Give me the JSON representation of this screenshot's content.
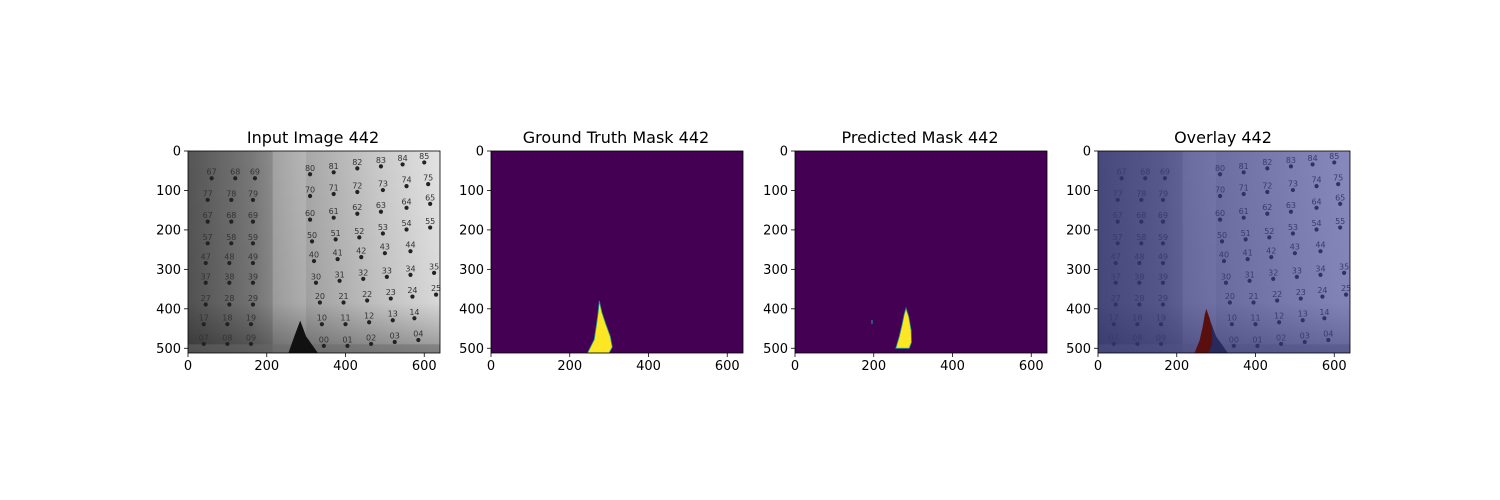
{
  "chart_data": [
    {
      "type": "heatmap",
      "title": "Input Image 442",
      "image_kind": "grayscale-photo",
      "colormap": "gray",
      "xlim": [
        0,
        640
      ],
      "ylim": [
        512,
        0
      ],
      "xticks": [
        0,
        200,
        400,
        600
      ],
      "yticks": [
        0,
        100,
        200,
        300,
        400,
        500
      ],
      "visible_numbers": [
        {
          "row": 0,
          "items": [
            [
              "67",
              60,
              55
            ],
            [
              "68",
              120,
              55
            ],
            [
              "69",
              170,
              55
            ],
            [
              "80",
              310,
              45
            ],
            [
              "81",
              370,
              40
            ],
            [
              "82",
              430,
              30
            ],
            [
              "83",
              490,
              25
            ],
            [
              "84",
              545,
              20
            ],
            [
              "85",
              600,
              15
            ]
          ]
        },
        {
          "row": 1,
          "items": [
            [
              "77",
              50,
              110
            ],
            [
              "78",
              110,
              110
            ],
            [
              "79",
              165,
              110
            ],
            [
              "70",
              310,
              100
            ],
            [
              "71",
              370,
              95
            ],
            [
              "72",
              430,
              90
            ],
            [
              "73",
              495,
              85
            ],
            [
              "74",
              555,
              75
            ],
            [
              "75",
              610,
              70
            ]
          ]
        },
        {
          "row": 2,
          "items": [
            [
              "67",
              50,
              165
            ],
            [
              "68",
              110,
              165
            ],
            [
              "69",
              165,
              165
            ],
            [
              "60",
              310,
              160
            ],
            [
              "61",
              370,
              155
            ],
            [
              "62",
              430,
              145
            ],
            [
              "63",
              490,
              140
            ],
            [
              "64",
              555,
              130
            ],
            [
              "65",
              615,
              120
            ]
          ]
        },
        {
          "row": 3,
          "items": [
            [
              "57",
              50,
              220
            ],
            [
              "58",
              110,
              220
            ],
            [
              "59",
              165,
              220
            ],
            [
              "50",
              315,
              215
            ],
            [
              "51",
              375,
              210
            ],
            [
              "52",
              435,
              205
            ],
            [
              "53",
              495,
              195
            ],
            [
              "54",
              555,
              185
            ],
            [
              "55",
              615,
              180
            ]
          ]
        },
        {
          "row": 4,
          "items": [
            [
              "47",
              45,
              270
            ],
            [
              "48",
              105,
              270
            ],
            [
              "49",
              165,
              270
            ],
            [
              "40",
              320,
              265
            ],
            [
              "41",
              380,
              260
            ],
            [
              "42",
              440,
              255
            ],
            [
              "43",
              500,
              245
            ],
            [
              "44",
              565,
              240
            ]
          ]
        },
        {
          "row": 5,
          "items": [
            [
              "37",
              45,
              320
            ],
            [
              "38",
              105,
              320
            ],
            [
              "39",
              165,
              320
            ],
            [
              "30",
              325,
              320
            ],
            [
              "31",
              385,
              315
            ],
            [
              "32",
              445,
              310
            ],
            [
              "33",
              505,
              305
            ],
            [
              "34",
              565,
              300
            ],
            [
              "35",
              625,
              295
            ]
          ]
        },
        {
          "row": 6,
          "items": [
            [
              "27",
              45,
              375
            ],
            [
              "28",
              105,
              375
            ],
            [
              "29",
              165,
              375
            ],
            [
              "20",
              335,
              370
            ],
            [
              "21",
              395,
              370
            ],
            [
              "22",
              455,
              365
            ],
            [
              "23",
              515,
              360
            ],
            [
              "24",
              570,
              355
            ],
            [
              "25",
              630,
              350
            ]
          ]
        },
        {
          "row": 7,
          "items": [
            [
              "17",
              40,
              425
            ],
            [
              "18",
              100,
              425
            ],
            [
              "19",
              160,
              425
            ],
            [
              "10",
              340,
              425
            ],
            [
              "11",
              400,
              425
            ],
            [
              "12",
              460,
              420
            ],
            [
              "13",
              520,
              415
            ],
            [
              "14",
              575,
              410
            ]
          ]
        },
        {
          "row": 8,
          "items": [
            [
              "07",
              40,
              475
            ],
            [
              "08",
              100,
              475
            ],
            [
              "09",
              160,
              475
            ],
            [
              "00",
              345,
              480
            ],
            [
              "01",
              405,
              480
            ],
            [
              "02",
              465,
              475
            ],
            [
              "03",
              525,
              470
            ],
            [
              "04",
              585,
              465
            ]
          ]
        }
      ]
    },
    {
      "type": "heatmap",
      "title": "Ground Truth Mask 442",
      "colormap": "viridis",
      "background_color": "#440154",
      "foreground_color": "#fde725",
      "edge_color": "#21918c",
      "xlim": [
        0,
        640
      ],
      "ylim": [
        512,
        0
      ],
      "xticks": [
        0,
        200,
        400,
        600
      ],
      "yticks": [
        0,
        100,
        200,
        300,
        400,
        500
      ],
      "mask_region": [
        [
          275,
          380
        ],
        [
          282,
          410
        ],
        [
          292,
          440
        ],
        [
          303,
          470
        ],
        [
          308,
          497
        ],
        [
          300,
          512
        ],
        [
          245,
          512
        ],
        [
          262,
          478
        ],
        [
          268,
          440
        ],
        [
          272,
          410
        ]
      ]
    },
    {
      "type": "heatmap",
      "title": "Predicted Mask 442",
      "colormap": "viridis",
      "background_color": "#440154",
      "foreground_color": "#fde725",
      "edge_color": "#21918c",
      "xlim": [
        0,
        640
      ],
      "ylim": [
        512,
        0
      ],
      "xticks": [
        0,
        200,
        400,
        600
      ],
      "yticks": [
        0,
        100,
        200,
        300,
        400,
        500
      ],
      "mask_region": [
        [
          282,
          398
        ],
        [
          289,
          420
        ],
        [
          295,
          455
        ],
        [
          296,
          485
        ],
        [
          290,
          500
        ],
        [
          256,
          500
        ],
        [
          265,
          470
        ],
        [
          272,
          440
        ],
        [
          277,
          415
        ]
      ],
      "speck": [
        194,
        428
      ]
    },
    {
      "type": "heatmap",
      "title": "Overlay 442",
      "colormap": "overlay",
      "overlay_tint": "#3c3f9e",
      "mask_color": "#5a0f0f",
      "xlim": [
        0,
        640
      ],
      "ylim": [
        512,
        0
      ],
      "xticks": [
        0,
        200,
        400,
        600
      ],
      "yticks": [
        0,
        100,
        200,
        300,
        400,
        500
      ],
      "mask_region": [
        [
          275,
          400
        ],
        [
          284,
          425
        ],
        [
          290,
          455
        ],
        [
          290,
          490
        ],
        [
          280,
          512
        ],
        [
          245,
          512
        ],
        [
          258,
          480
        ],
        [
          266,
          445
        ],
        [
          271,
          415
        ]
      ]
    }
  ]
}
